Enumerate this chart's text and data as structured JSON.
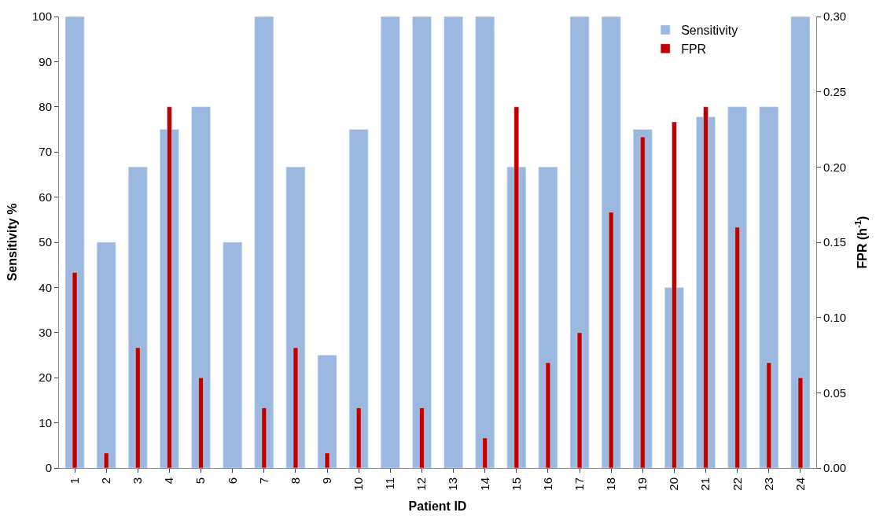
{
  "chart_data": {
    "type": "bar",
    "xlabel": "Patient ID",
    "ylabel": "Sensitivity %",
    "y2label": "FPR (h$^{-1}$)",
    "categories": [
      "1",
      "2",
      "3",
      "4",
      "5",
      "6",
      "7",
      "8",
      "9",
      "10",
      "11",
      "12",
      "13",
      "14",
      "15",
      "16",
      "17",
      "18",
      "19",
      "20",
      "21",
      "22",
      "23",
      "24"
    ],
    "series": [
      {
        "name": "Sensitivity",
        "color": "#9bb9e0",
        "values": [
          100,
          50,
          66.7,
          75,
          80,
          50,
          100,
          66.7,
          25,
          75,
          100,
          100,
          100,
          100,
          66.7,
          66.7,
          100,
          100,
          75,
          40,
          77.8,
          80,
          80,
          100
        ]
      },
      {
        "name": "FPR",
        "color": "#c00000",
        "axis": "y2",
        "values": [
          0.13,
          0.01,
          0.08,
          0.24,
          0.06,
          null,
          0.04,
          0.08,
          0.01,
          0.04,
          null,
          0.04,
          null,
          0.02,
          0.24,
          0.07,
          0.09,
          0.17,
          0.22,
          0.23,
          0.24,
          0.16,
          0.07,
          0.06
        ]
      }
    ],
    "ylim": [
      0,
      100
    ],
    "yticks": [
      0,
      10,
      20,
      30,
      40,
      50,
      60,
      70,
      80,
      90,
      100
    ],
    "y2lim": [
      0,
      0.3
    ],
    "y2ticks": [
      {
        "value": 0,
        "label": "0.00"
      },
      {
        "value": 0.05,
        "label": "0.05"
      },
      {
        "value": 0.1,
        "label": "0.10"
      },
      {
        "value": 0.15,
        "label": "0.15"
      },
      {
        "value": 0.2,
        "label": "0.20"
      },
      {
        "value": 0.25,
        "label": "0.25"
      },
      {
        "value": 0.3,
        "label": "0.30"
      }
    ],
    "legend": "top right"
  }
}
